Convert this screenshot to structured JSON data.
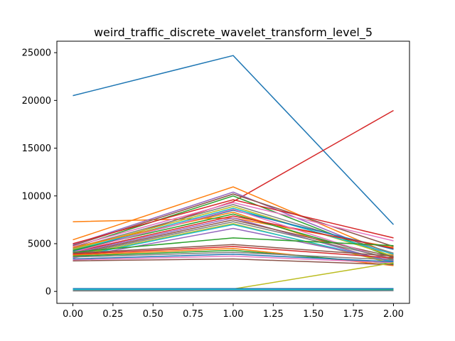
{
  "chart_data": {
    "type": "line",
    "title": "weird_traffic_discrete_wavelet_transform_level_5",
    "xlabel": "",
    "ylabel": "",
    "x": [
      0,
      1,
      2
    ],
    "xlim": [
      -0.1,
      2.1
    ],
    "ylim": [
      -1250,
      26200
    ],
    "xticks": [
      "0.00",
      "0.25",
      "0.50",
      "0.75",
      "1.00",
      "1.25",
      "1.50",
      "1.75",
      "2.00"
    ],
    "xtick_values": [
      0,
      0.25,
      0.5,
      0.75,
      1,
      1.25,
      1.5,
      1.75,
      2
    ],
    "yticks": [
      "0",
      "5000",
      "10000",
      "15000",
      "20000",
      "25000"
    ],
    "ytick_values": [
      0,
      5000,
      10000,
      15000,
      20000,
      25000
    ],
    "grid": false,
    "legend": "none",
    "series": [
      {
        "color": "#1f77b4",
        "values": [
          20500,
          24700,
          7000
        ]
      },
      {
        "color": "#d62728",
        "values": [
          4000,
          9400,
          18950
        ]
      },
      {
        "color": "#ff7f0e",
        "values": [
          7300,
          7700,
          4600
        ]
      },
      {
        "color": "#ff7f0e",
        "values": [
          5400,
          10950,
          3800
        ]
      },
      {
        "color": "#9467bd",
        "values": [
          4900,
          10400,
          3600
        ]
      },
      {
        "color": "#8c564b",
        "values": [
          4800,
          10200,
          4700
        ]
      },
      {
        "color": "#2ca02c",
        "values": [
          4600,
          10000,
          3500
        ]
      },
      {
        "color": "#d62728",
        "values": [
          5000,
          9600,
          5600
        ]
      },
      {
        "color": "#e377c2",
        "values": [
          4700,
          9300,
          5300
        ]
      },
      {
        "color": "#7f7f7f",
        "values": [
          4500,
          9100,
          4000
        ]
      },
      {
        "color": "#bcbd22",
        "values": [
          4400,
          8900,
          3700
        ]
      },
      {
        "color": "#17becf",
        "values": [
          4300,
          8700,
          3900
        ]
      },
      {
        "color": "#1f77b4",
        "values": [
          4200,
          8500,
          4400
        ]
      },
      {
        "color": "#ff7f0e",
        "values": [
          4600,
          8300,
          2800
        ]
      },
      {
        "color": "#2ca02c",
        "values": [
          4300,
          8100,
          3300
        ]
      },
      {
        "color": "#d62728",
        "values": [
          4100,
          7900,
          4500
        ]
      },
      {
        "color": "#9467bd",
        "values": [
          4000,
          7700,
          3000
        ]
      },
      {
        "color": "#8c564b",
        "values": [
          3900,
          7500,
          3600
        ]
      },
      {
        "color": "#e377c2",
        "values": [
          4100,
          8600,
          3200
        ]
      },
      {
        "color": "#7f7f7f",
        "values": [
          3800,
          7300,
          3400
        ]
      },
      {
        "color": "#bcbd22",
        "values": [
          3700,
          7100,
          2900
        ]
      },
      {
        "color": "#17becf",
        "values": [
          3600,
          7000,
          3100
        ]
      },
      {
        "color": "#9467bd",
        "values": [
          3500,
          6600,
          3200
        ]
      },
      {
        "color": "#2ca02c",
        "values": [
          4100,
          5600,
          4800
        ]
      },
      {
        "color": "#8c564b",
        "values": [
          4000,
          4900,
          3700
        ]
      },
      {
        "color": "#d62728",
        "values": [
          3900,
          4700,
          3500
        ]
      },
      {
        "color": "#ff7f0e",
        "values": [
          3800,
          4500,
          2700
        ]
      },
      {
        "color": "#2ca02c",
        "values": [
          3700,
          4300,
          2900
        ]
      },
      {
        "color": "#7f7f7f",
        "values": [
          3600,
          4100,
          3300
        ]
      },
      {
        "color": "#1f77b4",
        "values": [
          3400,
          3900,
          3100
        ]
      },
      {
        "color": "#e377c2",
        "values": [
          3300,
          3700,
          3000
        ]
      },
      {
        "color": "#8c564b",
        "values": [
          3200,
          3400,
          2800
        ]
      },
      {
        "color": "#bcbd22",
        "values": [
          100,
          250,
          3000
        ]
      },
      {
        "color": "#2ca02c",
        "values": [
          150,
          200,
          250
        ]
      },
      {
        "color": "#9467bd",
        "values": [
          80,
          100,
          120
        ]
      },
      {
        "color": "#1f77b4",
        "values": [
          300,
          300,
          300
        ]
      },
      {
        "color": "#17becf",
        "values": [
          200,
          200,
          150
        ]
      },
      {
        "color": "#7f7f7f",
        "values": [
          50,
          60,
          70
        ]
      }
    ]
  }
}
